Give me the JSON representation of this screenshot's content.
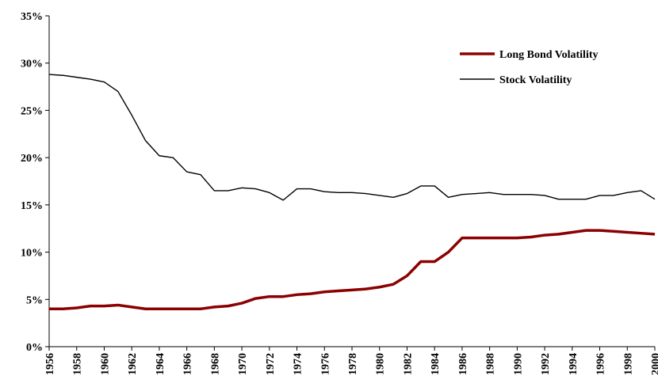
{
  "chart_data": {
    "type": "line",
    "x": [
      1956,
      1957,
      1958,
      1959,
      1960,
      1961,
      1962,
      1963,
      1964,
      1965,
      1966,
      1967,
      1968,
      1969,
      1970,
      1971,
      1972,
      1973,
      1974,
      1975,
      1976,
      1977,
      1978,
      1979,
      1980,
      1981,
      1982,
      1983,
      1984,
      1985,
      1986,
      1987,
      1988,
      1989,
      1990,
      1991,
      1992,
      1993,
      1994,
      1995,
      1996,
      1997,
      1998,
      1999,
      2000
    ],
    "series": [
      {
        "name": "Long Bond Volatility",
        "color": "#8b0000",
        "values": [
          4.0,
          4.0,
          4.1,
          4.3,
          4.3,
          4.4,
          4.2,
          4.0,
          4.0,
          4.0,
          4.0,
          4.0,
          4.2,
          4.3,
          4.6,
          5.1,
          5.3,
          5.3,
          5.5,
          5.6,
          5.8,
          5.9,
          6.0,
          6.1,
          6.3,
          6.6,
          7.5,
          9.0,
          9.0,
          10.0,
          11.5,
          11.5,
          11.5,
          11.5,
          11.5,
          11.6,
          11.8,
          11.9,
          12.1,
          12.3,
          12.3,
          12.2,
          12.1,
          12.0,
          11.9
        ]
      },
      {
        "name": "Stock Volatility",
        "color": "#000000",
        "values": [
          28.8,
          28.7,
          28.5,
          28.3,
          28.0,
          27.0,
          24.5,
          21.8,
          20.2,
          20.0,
          18.5,
          18.2,
          16.5,
          16.5,
          16.8,
          16.7,
          16.3,
          15.5,
          16.7,
          16.7,
          16.4,
          16.3,
          16.3,
          16.2,
          16.0,
          15.8,
          16.2,
          17.0,
          17.0,
          15.8,
          16.1,
          16.2,
          16.3,
          16.1,
          16.1,
          16.1,
          16.0,
          15.6,
          15.6,
          15.6,
          16.0,
          16.0,
          16.3,
          16.5,
          15.6
        ]
      }
    ],
    "xlim": [
      1956,
      2000
    ],
    "xticks": [
      1956,
      1958,
      1960,
      1962,
      1964,
      1966,
      1968,
      1970,
      1972,
      1974,
      1976,
      1978,
      1980,
      1982,
      1984,
      1986,
      1988,
      1990,
      1992,
      1994,
      1996,
      1998,
      2000
    ],
    "ylim": [
      0,
      35
    ],
    "yticks": [
      {
        "value": 0,
        "label": "0%"
      },
      {
        "value": 5,
        "label": "5%"
      },
      {
        "value": 10,
        "label": "10%"
      },
      {
        "value": 15,
        "label": "15%"
      },
      {
        "value": 20,
        "label": "20%"
      },
      {
        "value": 25,
        "label": "25%"
      },
      {
        "value": 30,
        "label": "30%"
      },
      {
        "value": 35,
        "label": "35%"
      }
    ],
    "legend": "upper right"
  }
}
